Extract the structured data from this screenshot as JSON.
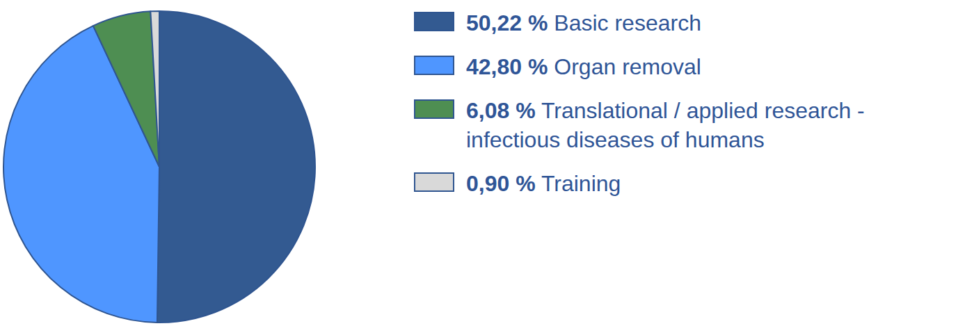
{
  "chart_data": {
    "type": "pie",
    "categories": [
      "Basic research",
      "Organ removal",
      "Translational / applied research - infectious diseases of humans",
      "Training"
    ],
    "values": [
      50.22,
      42.8,
      6.08,
      0.9
    ],
    "value_labels": [
      "50,22 %",
      "42,80 %",
      "6,08 %",
      "0,90 %"
    ],
    "colors": [
      "#335a91",
      "#4f96ff",
      "#4e8e52",
      "#d9d9d9"
    ],
    "legend": "right"
  }
}
